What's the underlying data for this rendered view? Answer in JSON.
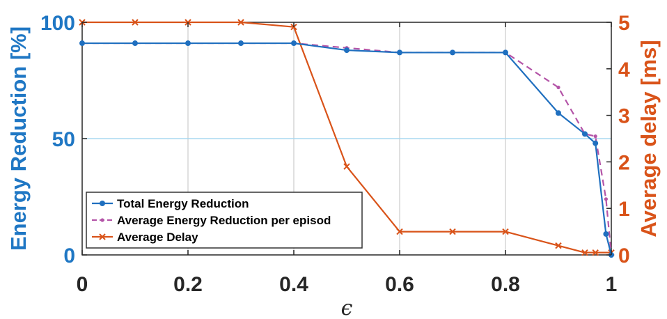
{
  "chart_data": {
    "type": "line",
    "xlabel": "ϵ",
    "ylabel_left": "Energy Reduction [%]",
    "ylabel_right": "Average delay [ms]",
    "xlim": [
      0,
      1
    ],
    "ylim_left": [
      0,
      100
    ],
    "ylim_right": [
      0,
      5
    ],
    "x_ticks": [
      "0",
      "0.2",
      "0.4",
      "0.6",
      "0.8",
      "1"
    ],
    "y_left_ticks": [
      "0",
      "50",
      "100"
    ],
    "y_right_ticks": [
      "0",
      "1",
      "2",
      "3",
      "4",
      "5"
    ],
    "grid": "vertical",
    "legend_position": "bottom-left",
    "colors": {
      "left_axis": "#1f77c4",
      "right_axis": "#d95319",
      "total": "#1f6fbf",
      "per_episode": "#b455a8",
      "delay": "#d95319",
      "hline": "#a8d8f0"
    },
    "reference_line": {
      "axis": "left",
      "y": 50
    },
    "series": [
      {
        "name": "Total Energy Reduction",
        "axis": "left",
        "marker": "dot",
        "dash": "solid",
        "color_key": "total",
        "x": [
          0,
          0.1,
          0.2,
          0.3,
          0.4,
          0.5,
          0.6,
          0.7,
          0.8,
          0.9,
          0.95,
          0.97,
          0.99,
          1.0
        ],
        "values": [
          91,
          91,
          91,
          91,
          91,
          88,
          87,
          87,
          87,
          61,
          52,
          48,
          9,
          0
        ]
      },
      {
        "name": "Average Energy Reduction per episod",
        "axis": "left",
        "marker": "smalldot",
        "dash": "dashed",
        "color_key": "per_episode",
        "x": [
          0,
          0.1,
          0.2,
          0.3,
          0.4,
          0.5,
          0.6,
          0.7,
          0.8,
          0.9,
          0.95,
          0.97,
          0.99,
          1.0
        ],
        "values": [
          91,
          91,
          91,
          91,
          91,
          89,
          87,
          87,
          87,
          72,
          52,
          51,
          24,
          0
        ]
      },
      {
        "name": "Average Delay",
        "axis": "right",
        "marker": "cross",
        "dash": "solid",
        "color_key": "delay",
        "x": [
          0,
          0.1,
          0.2,
          0.3,
          0.4,
          0.5,
          0.6,
          0.7,
          0.8,
          0.9,
          0.95,
          0.97,
          1.0
        ],
        "values": [
          5,
          5,
          5,
          5,
          4.9,
          1.9,
          0.5,
          0.5,
          0.5,
          0.2,
          0.05,
          0.05,
          0.05
        ]
      }
    ]
  }
}
